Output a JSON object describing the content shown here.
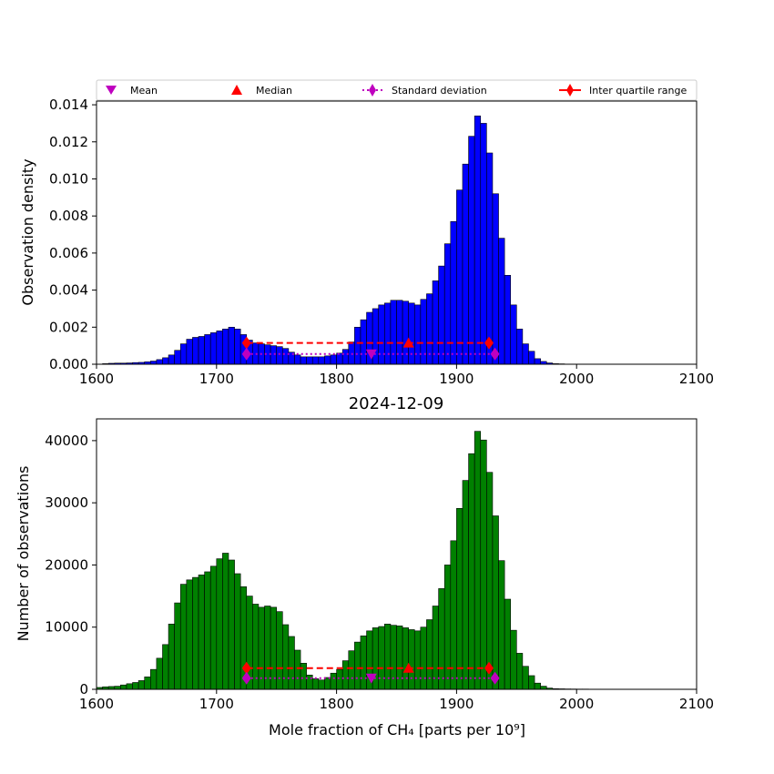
{
  "legend": {
    "mean": "Mean",
    "median": "Median",
    "std": "Standard deviation",
    "iqr": "Inter quartile range"
  },
  "colors": {
    "top_bars": "#0000ff",
    "bottom_bars": "#008000",
    "mean_marker": "#bf00bf",
    "iqr": "#ff0000"
  },
  "chart_data": [
    {
      "type": "bar",
      "ylabel": "Observation density",
      "xlim": [
        1600,
        2100
      ],
      "ylim": [
        0,
        0.0142
      ],
      "xticks": [
        "1600",
        "1700",
        "1800",
        "1900",
        "2000",
        "2100"
      ],
      "yticks": [
        "0.000",
        "0.002",
        "0.004",
        "0.006",
        "0.008",
        "0.010",
        "0.012",
        "0.014"
      ],
      "bin_start": 1605,
      "bin_width": 5,
      "values": [
        3e-05,
        5e-05,
        6e-05,
        6e-05,
        7e-05,
        9e-05,
        0.0001,
        0.00013,
        0.00017,
        0.00025,
        0.00035,
        0.0005,
        0.00075,
        0.0011,
        0.00135,
        0.00145,
        0.0015,
        0.0016,
        0.0017,
        0.0018,
        0.0019,
        0.002,
        0.0019,
        0.0016,
        0.0013,
        0.00115,
        0.0011,
        0.00105,
        0.001,
        0.00095,
        0.00085,
        0.00065,
        0.0005,
        0.0004,
        0.0004,
        0.0004,
        0.0004,
        0.00045,
        0.0005,
        0.0006,
        0.0008,
        0.0012,
        0.002,
        0.0024,
        0.0028,
        0.003,
        0.0032,
        0.0033,
        0.00345,
        0.00345,
        0.0034,
        0.0033,
        0.0032,
        0.0035,
        0.0038,
        0.0045,
        0.0053,
        0.0065,
        0.0077,
        0.0094,
        0.0108,
        0.0123,
        0.0134,
        0.013,
        0.0114,
        0.0092,
        0.0068,
        0.0048,
        0.0032,
        0.0019,
        0.0011,
        0.0007,
        0.0003,
        0.00015,
        7e-05,
        3e-05,
        2e-05,
        1e-05,
        1e-05,
        1e-05,
        1e-05,
        1e-05,
        1e-05,
        1e-05,
        1e-05,
        1e-05,
        1e-05,
        1e-05,
        1e-05,
        1e-05,
        1e-05,
        1e-05,
        1e-05,
        1e-05,
        1e-05,
        1e-05,
        1e-05,
        1e-05,
        1e-05
      ],
      "stats": {
        "mean": 1829,
        "median": 1860,
        "std_range": [
          1725,
          1932
        ],
        "iqr_range": [
          1725,
          1927
        ],
        "mean_y": 0.00055,
        "median_y": 0.00115,
        "std_y": 0.00055,
        "iqr_y": 0.00115
      }
    },
    {
      "type": "bar",
      "title": "2024-12-09",
      "xlabel": "Mole fraction of CH₄ [parts per 10⁹]",
      "ylabel": "Number of observations",
      "xlim": [
        1600,
        2100
      ],
      "ylim": [
        0,
        43500
      ],
      "xticks": [
        "1600",
        "1700",
        "1800",
        "1900",
        "2000",
        "2100"
      ],
      "yticks": [
        "0",
        "10000",
        "20000",
        "30000",
        "40000"
      ],
      "bin_start": 1600,
      "bin_width": 5,
      "values": [
        300,
        400,
        450,
        500,
        700,
        900,
        1100,
        1400,
        2000,
        3200,
        5000,
        7200,
        10500,
        13900,
        16900,
        17600,
        18000,
        18400,
        18900,
        19800,
        21000,
        21900,
        20800,
        18600,
        16500,
        15000,
        13700,
        13200,
        13400,
        13200,
        12500,
        10400,
        8500,
        6300,
        4200,
        2300,
        1700,
        1500,
        1900,
        2600,
        3200,
        4600,
        6200,
        7600,
        8600,
        9400,
        9900,
        10100,
        10500,
        10300,
        10200,
        9900,
        9600,
        9400,
        10000,
        11200,
        13400,
        16200,
        20000,
        23900,
        29100,
        33600,
        37900,
        41500,
        40100,
        34900,
        27900,
        20700,
        14500,
        9500,
        5800,
        3700,
        2200,
        1000,
        500,
        200,
        100,
        80,
        60,
        50,
        40,
        40,
        30,
        30,
        30,
        30,
        30,
        30,
        30,
        30,
        30,
        30,
        30,
        30,
        30,
        30,
        30,
        30,
        30,
        30
      ],
      "stats": {
        "mean": 1829,
        "median": 1860,
        "std_range": [
          1725,
          1932
        ],
        "iqr_range": [
          1725,
          1927
        ],
        "mean_y": 1800,
        "median_y": 3400,
        "std_y": 1800,
        "iqr_y": 3400
      }
    }
  ]
}
